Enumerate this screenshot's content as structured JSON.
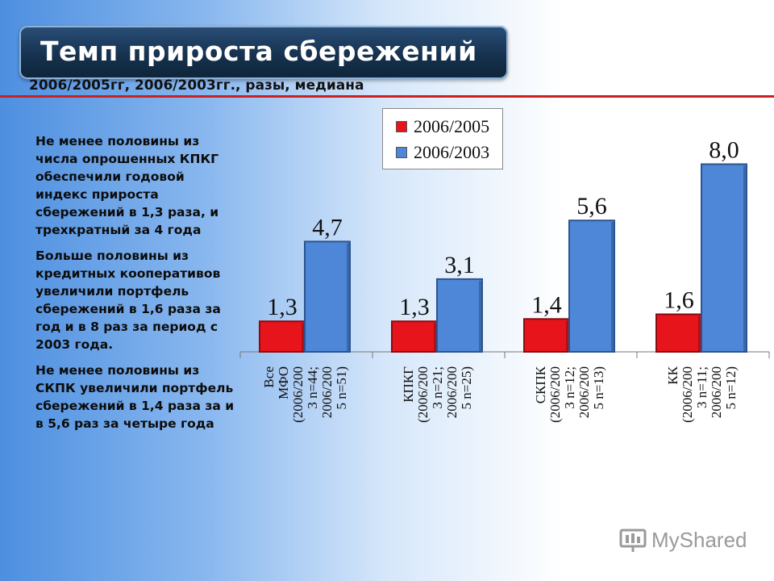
{
  "slide": {
    "title": "Темп прироста сбережений",
    "subtitle": "2006/2005гг, 2006/2003гг., разы, медиана",
    "paragraphs": [
      "Не менее половины из числа опрошенных КПКГ обеспечили годовой индекс прироста сбережений в 1,3 раза, и трехкратный за 4 года",
      "Больше половины из кредитных кооперативов увеличили портфель сбережений в 1,6 раза за год и в 8 раз за период с 2003 года.",
      "Не менее половины из СКПК увеличили портфель сбережений в 1,4 раза за  и в 5,6 раз за четыре года"
    ],
    "logo_text": "MyShared",
    "colors": {
      "series1": "#e8141c",
      "series2": "#4f87d8",
      "title_bg": "#1b3a5c",
      "rule": "#cc1f1f"
    }
  },
  "chart_data": {
    "type": "bar",
    "categories": [
      [
        "Все",
        "МФО",
        "(2006/200",
        "3 n=44;",
        "2006/200",
        "5 n=51)"
      ],
      [
        "КПКГ",
        "(2006/200",
        "3 n=21;",
        "2006/200",
        "5 n=25)"
      ],
      [
        "СКПК",
        "(2006/200",
        "3 n=12;",
        "2006/200",
        "5 n=13)"
      ],
      [
        "КК",
        "(2006/200",
        "3 n=11;",
        "2006/200",
        "5 n=12)"
      ]
    ],
    "series": [
      {
        "name": "2006/2005",
        "values": [
          1.3,
          1.3,
          1.4,
          1.6
        ],
        "labels": [
          "1,3",
          "1,3",
          "1,4",
          "1,6"
        ]
      },
      {
        "name": "2006/2003",
        "values": [
          4.7,
          3.1,
          5.6,
          8.0
        ],
        "labels": [
          "4,7",
          "3,1",
          "5,6",
          "8,0"
        ]
      }
    ],
    "ylim": [
      0,
      8.6
    ],
    "legend_position": "top-right",
    "grid": false
  }
}
